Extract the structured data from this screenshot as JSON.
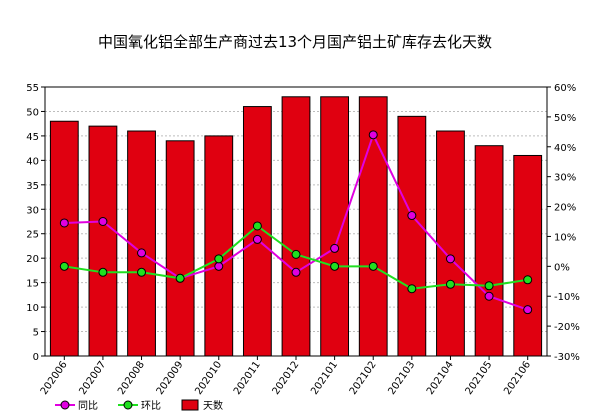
{
  "chart_data": {
    "type": "bar",
    "title": "中国氧化铝全部生产商过去13个月国产铝土矿库存去化天数",
    "categories": [
      "202006",
      "202007",
      "202008",
      "202009",
      "202010",
      "202011",
      "202012",
      "202101",
      "202102",
      "202103",
      "202104",
      "202105",
      "202106"
    ],
    "left_axis": {
      "min": 0,
      "max": 55,
      "step": 5,
      "tick_labels": [
        "0",
        "5",
        "10",
        "15",
        "20",
        "25",
        "30",
        "35",
        "40",
        "45",
        "50",
        "55"
      ]
    },
    "right_axis": {
      "min": -30,
      "max": 60,
      "step": 10,
      "tick_labels": [
        "-30%",
        "-20%",
        "-10%",
        "0%",
        "10%",
        "20%",
        "30%",
        "40%",
        "50%",
        "60%"
      ]
    },
    "series": [
      {
        "name": "天数",
        "kind": "bar",
        "axis": "left",
        "color": "#e00010",
        "values": [
          48,
          47,
          46,
          44,
          45,
          51,
          53,
          53,
          53,
          49,
          46,
          43,
          41
        ]
      },
      {
        "name": "同比",
        "kind": "line",
        "axis": "right",
        "unit": "%",
        "color": "#e000e0",
        "values": [
          14.5,
          15,
          4.5,
          -4,
          0,
          9,
          -2,
          6,
          44,
          17,
          2.5,
          -10,
          -14.5
        ]
      },
      {
        "name": "环比",
        "kind": "line",
        "axis": "right",
        "unit": "%",
        "color": "#20e020",
        "values": [
          0,
          -2,
          -2,
          -4,
          2.5,
          13.5,
          4,
          0,
          0,
          -7.5,
          -6,
          -6.5,
          -4.5
        ]
      }
    ],
    "legend_position": "bottom-left",
    "grid": true
  }
}
